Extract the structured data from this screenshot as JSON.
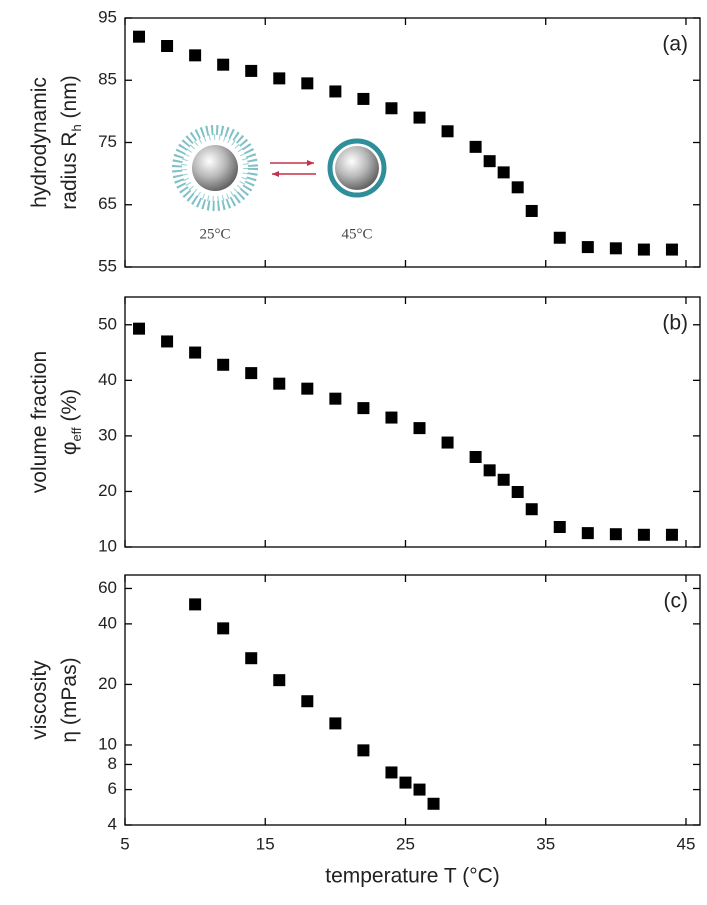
{
  "chart_data": [
    {
      "type": "scatter",
      "panel_label": "(a)",
      "y_label": [
        [
          "hydrodynamic"
        ],
        [
          "radius R",
          "h",
          " (nm)"
        ]
      ],
      "annotations": [
        "25°C",
        "45°C"
      ],
      "x": [
        6,
        8,
        10,
        12,
        14,
        16,
        18,
        20,
        22,
        24,
        26,
        28,
        30,
        31,
        32,
        33,
        34,
        36,
        38,
        40,
        42,
        44
      ],
      "values": [
        92,
        90.5,
        89,
        87.5,
        86.5,
        85.3,
        84.5,
        83.2,
        82,
        80.5,
        79,
        76.8,
        74.3,
        72,
        70.2,
        67.8,
        64,
        59.7,
        58.2,
        58,
        57.8,
        57.8
      ],
      "color": "#000000",
      "xlim": [
        5,
        46
      ],
      "xticks": [
        5,
        15,
        25,
        35,
        45
      ],
      "ylim": [
        55,
        95
      ],
      "yticks": [
        55,
        65,
        75,
        85,
        95
      ]
    },
    {
      "type": "scatter",
      "panel_label": "(b)",
      "y_label": [
        [
          "volume fraction"
        ],
        [
          "φ",
          "eff",
          " (%)"
        ]
      ],
      "x": [
        6,
        8,
        10,
        12,
        14,
        16,
        18,
        20,
        22,
        24,
        26,
        28,
        30,
        31,
        32,
        33,
        34,
        36,
        38,
        40,
        42,
        44
      ],
      "values": [
        49.3,
        47,
        45,
        42.8,
        41.3,
        39.4,
        38.5,
        36.7,
        35,
        33.3,
        31.4,
        28.8,
        26.2,
        23.8,
        22.1,
        19.9,
        16.8,
        13.6,
        12.5,
        12.3,
        12.2,
        12.2
      ],
      "color": "#000000",
      "xlim": [
        5,
        46
      ],
      "xticks": [
        5,
        15,
        25,
        35,
        45
      ],
      "ylim": [
        10,
        55
      ],
      "yticks": [
        10,
        20,
        30,
        40,
        50
      ]
    },
    {
      "type": "scatter",
      "panel_label": "(c)",
      "y_label": [
        [
          "viscosity"
        ],
        [
          "η (mPas)"
        ]
      ],
      "x_label": "temperature T (°C)",
      "x": [
        10,
        12,
        14,
        16,
        18,
        20,
        22,
        24,
        25,
        26,
        27
      ],
      "values": [
        50,
        38,
        27,
        21,
        16.5,
        12.8,
        9.4,
        7.3,
        6.5,
        6,
        5.1
      ],
      "color": "#000000",
      "log_y": true,
      "xlim": [
        5,
        46
      ],
      "xticks": [
        5,
        15,
        25,
        35,
        45
      ],
      "ylim": [
        4,
        70
      ],
      "yticks": [
        4,
        6,
        8,
        10,
        20,
        40,
        60
      ]
    }
  ]
}
